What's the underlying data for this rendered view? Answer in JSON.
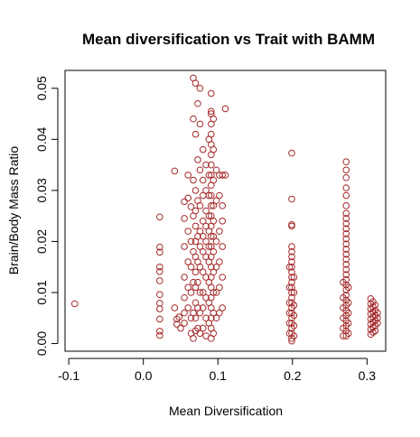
{
  "chart_data": {
    "type": "scatter",
    "title": "Mean diversification vs Trait with BAMM",
    "xlabel": "Mean Diversification",
    "ylabel": "Brain/Body Mass Ratio",
    "xlim": [
      -0.105,
      0.325
    ],
    "ylim": [
      -0.0015,
      0.0535
    ],
    "x_ticks": [
      -0.1,
      0.0,
      0.1,
      0.2,
      0.3
    ],
    "x_tick_labels": [
      "-0.1",
      "0.0",
      "0.1",
      "0.2",
      "0.3"
    ],
    "y_ticks": [
      0.0,
      0.01,
      0.02,
      0.03,
      0.04,
      0.05
    ],
    "y_tick_labels": [
      "0.00",
      "0.01",
      "0.02",
      "0.03",
      "0.04",
      "0.05"
    ],
    "marker": "open-circle",
    "color": "#a52a2a",
    "grid": false,
    "legend": "none",
    "points": [
      [
        -0.092,
        0.0078
      ],
      [
        0.022,
        0.0248
      ],
      [
        0.022,
        0.0189
      ],
      [
        0.022,
        0.0179
      ],
      [
        0.022,
        0.015
      ],
      [
        0.022,
        0.0141
      ],
      [
        0.022,
        0.0123
      ],
      [
        0.022,
        0.0096
      ],
      [
        0.022,
        0.0079
      ],
      [
        0.022,
        0.0068
      ],
      [
        0.022,
        0.0048
      ],
      [
        0.022,
        0.0024
      ],
      [
        0.022,
        0.0016
      ],
      [
        0.042,
        0.0338
      ],
      [
        0.042,
        0.007
      ],
      [
        0.045,
        0.0048
      ],
      [
        0.045,
        0.0038
      ],
      [
        0.048,
        0.0052
      ],
      [
        0.05,
        0.003
      ],
      [
        0.055,
        0.0278
      ],
      [
        0.055,
        0.0245
      ],
      [
        0.055,
        0.019
      ],
      [
        0.055,
        0.013
      ],
      [
        0.055,
        0.009
      ],
      [
        0.055,
        0.006
      ],
      [
        0.055,
        0.004
      ],
      [
        0.06,
        0.033
      ],
      [
        0.06,
        0.0285
      ],
      [
        0.06,
        0.022
      ],
      [
        0.06,
        0.016
      ],
      [
        0.06,
        0.011
      ],
      [
        0.06,
        0.007
      ],
      [
        0.064,
        0.0268
      ],
      [
        0.064,
        0.02
      ],
      [
        0.064,
        0.015
      ],
      [
        0.064,
        0.01
      ],
      [
        0.064,
        0.005
      ],
      [
        0.064,
        0.002
      ],
      [
        0.067,
        0.052
      ],
      [
        0.067,
        0.044
      ],
      [
        0.067,
        0.032
      ],
      [
        0.067,
        0.025
      ],
      [
        0.067,
        0.018
      ],
      [
        0.067,
        0.012
      ],
      [
        0.067,
        0.006
      ],
      [
        0.067,
        0.001
      ],
      [
        0.07,
        0.051
      ],
      [
        0.07,
        0.041
      ],
      [
        0.07,
        0.03
      ],
      [
        0.07,
        0.026
      ],
      [
        0.07,
        0.023
      ],
      [
        0.07,
        0.02
      ],
      [
        0.07,
        0.017
      ],
      [
        0.07,
        0.014
      ],
      [
        0.07,
        0.011
      ],
      [
        0.07,
        0.008
      ],
      [
        0.07,
        0.005
      ],
      [
        0.07,
        0.0025
      ],
      [
        0.073,
        0.047
      ],
      [
        0.073,
        0.036
      ],
      [
        0.073,
        0.028
      ],
      [
        0.073,
        0.021
      ],
      [
        0.073,
        0.016
      ],
      [
        0.073,
        0.012
      ],
      [
        0.073,
        0.007
      ],
      [
        0.073,
        0.003
      ],
      [
        0.076,
        0.05
      ],
      [
        0.076,
        0.043
      ],
      [
        0.076,
        0.034
      ],
      [
        0.076,
        0.027
      ],
      [
        0.076,
        0.022
      ],
      [
        0.076,
        0.019
      ],
      [
        0.076,
        0.015
      ],
      [
        0.076,
        0.01
      ],
      [
        0.076,
        0.006
      ],
      [
        0.076,
        0.002
      ],
      [
        0.08,
        0.038
      ],
      [
        0.08,
        0.032
      ],
      [
        0.08,
        0.029
      ],
      [
        0.08,
        0.024
      ],
      [
        0.08,
        0.021
      ],
      [
        0.08,
        0.018
      ],
      [
        0.08,
        0.014
      ],
      [
        0.08,
        0.01
      ],
      [
        0.08,
        0.007
      ],
      [
        0.08,
        0.003
      ],
      [
        0.084,
        0.035
      ],
      [
        0.084,
        0.03
      ],
      [
        0.084,
        0.026
      ],
      [
        0.084,
        0.023
      ],
      [
        0.084,
        0.02
      ],
      [
        0.084,
        0.017
      ],
      [
        0.084,
        0.013
      ],
      [
        0.084,
        0.009
      ],
      [
        0.084,
        0.005
      ],
      [
        0.084,
        0.0015
      ],
      [
        0.088,
        0.04
      ],
      [
        0.088,
        0.033
      ],
      [
        0.088,
        0.029
      ],
      [
        0.088,
        0.025
      ],
      [
        0.088,
        0.022
      ],
      [
        0.088,
        0.019
      ],
      [
        0.088,
        0.016
      ],
      [
        0.088,
        0.012
      ],
      [
        0.088,
        0.008
      ],
      [
        0.088,
        0.004
      ],
      [
        0.091,
        0.049
      ],
      [
        0.091,
        0.0455
      ],
      [
        0.091,
        0.045
      ],
      [
        0.091,
        0.043
      ],
      [
        0.091,
        0.041
      ],
      [
        0.091,
        0.039
      ],
      [
        0.091,
        0.037
      ],
      [
        0.091,
        0.035
      ],
      [
        0.091,
        0.033
      ],
      [
        0.091,
        0.031
      ],
      [
        0.091,
        0.029
      ],
      [
        0.091,
        0.027
      ],
      [
        0.091,
        0.025
      ],
      [
        0.091,
        0.023
      ],
      [
        0.091,
        0.021
      ],
      [
        0.091,
        0.019
      ],
      [
        0.091,
        0.017
      ],
      [
        0.091,
        0.015
      ],
      [
        0.091,
        0.013
      ],
      [
        0.091,
        0.011
      ],
      [
        0.091,
        0.009
      ],
      [
        0.091,
        0.007
      ],
      [
        0.091,
        0.005
      ],
      [
        0.091,
        0.003
      ],
      [
        0.091,
        0.001
      ],
      [
        0.094,
        0.044
      ],
      [
        0.094,
        0.038
      ],
      [
        0.094,
        0.032
      ],
      [
        0.094,
        0.027
      ],
      [
        0.094,
        0.024
      ],
      [
        0.094,
        0.021
      ],
      [
        0.094,
        0.018
      ],
      [
        0.094,
        0.014
      ],
      [
        0.094,
        0.01
      ],
      [
        0.094,
        0.006
      ],
      [
        0.094,
        0.002
      ],
      [
        0.098,
        0.034
      ],
      [
        0.098,
        0.028
      ],
      [
        0.098,
        0.02
      ],
      [
        0.098,
        0.015
      ],
      [
        0.098,
        0.01
      ],
      [
        0.098,
        0.005
      ],
      [
        0.102,
        0.033
      ],
      [
        0.102,
        0.029
      ],
      [
        0.102,
        0.022
      ],
      [
        0.102,
        0.016
      ],
      [
        0.102,
        0.011
      ],
      [
        0.102,
        0.006
      ],
      [
        0.106,
        0.033
      ],
      [
        0.106,
        0.027
      ],
      [
        0.106,
        0.024
      ],
      [
        0.106,
        0.019
      ],
      [
        0.106,
        0.013
      ],
      [
        0.106,
        0.007
      ],
      [
        0.11,
        0.046
      ],
      [
        0.11,
        0.033
      ],
      [
        0.199,
        0.0373
      ],
      [
        0.199,
        0.0283
      ],
      [
        0.199,
        0.0233
      ],
      [
        0.199,
        0.023
      ],
      [
        0.199,
        0.019
      ],
      [
        0.199,
        0.018
      ],
      [
        0.199,
        0.017
      ],
      [
        0.199,
        0.016
      ],
      [
        0.199,
        0.015
      ],
      [
        0.199,
        0.014
      ],
      [
        0.199,
        0.013
      ],
      [
        0.199,
        0.012
      ],
      [
        0.199,
        0.011
      ],
      [
        0.199,
        0.01
      ],
      [
        0.199,
        0.009
      ],
      [
        0.199,
        0.008
      ],
      [
        0.199,
        0.007
      ],
      [
        0.199,
        0.006
      ],
      [
        0.199,
        0.005
      ],
      [
        0.199,
        0.004
      ],
      [
        0.199,
        0.003
      ],
      [
        0.199,
        0.002
      ],
      [
        0.199,
        0.001
      ],
      [
        0.199,
        0.0005
      ],
      [
        0.196,
        0.015
      ],
      [
        0.196,
        0.011
      ],
      [
        0.196,
        0.008
      ],
      [
        0.196,
        0.006
      ],
      [
        0.196,
        0.004
      ],
      [
        0.196,
        0.002
      ],
      [
        0.202,
        0.013
      ],
      [
        0.202,
        0.01
      ],
      [
        0.202,
        0.0075
      ],
      [
        0.202,
        0.0055
      ],
      [
        0.202,
        0.0035
      ],
      [
        0.202,
        0.0015
      ],
      [
        0.272,
        0.0356
      ],
      [
        0.272,
        0.034
      ],
      [
        0.272,
        0.0325
      ],
      [
        0.272,
        0.0305
      ],
      [
        0.272,
        0.029
      ],
      [
        0.272,
        0.027
      ],
      [
        0.272,
        0.0255
      ],
      [
        0.272,
        0.0245
      ],
      [
        0.272,
        0.0235
      ],
      [
        0.272,
        0.0225
      ],
      [
        0.272,
        0.0215
      ],
      [
        0.272,
        0.0205
      ],
      [
        0.272,
        0.0195
      ],
      [
        0.272,
        0.0185
      ],
      [
        0.272,
        0.0175
      ],
      [
        0.272,
        0.0165
      ],
      [
        0.272,
        0.0155
      ],
      [
        0.272,
        0.0145
      ],
      [
        0.272,
        0.0135
      ],
      [
        0.272,
        0.0125
      ],
      [
        0.272,
        0.0115
      ],
      [
        0.272,
        0.0105
      ],
      [
        0.272,
        0.0095
      ],
      [
        0.272,
        0.0085
      ],
      [
        0.272,
        0.0075
      ],
      [
        0.272,
        0.0065
      ],
      [
        0.272,
        0.0055
      ],
      [
        0.272,
        0.0045
      ],
      [
        0.272,
        0.0035
      ],
      [
        0.272,
        0.0025
      ],
      [
        0.272,
        0.0015
      ],
      [
        0.268,
        0.012
      ],
      [
        0.268,
        0.009
      ],
      [
        0.268,
        0.007
      ],
      [
        0.268,
        0.005
      ],
      [
        0.268,
        0.003
      ],
      [
        0.268,
        0.0015
      ],
      [
        0.275,
        0.011
      ],
      [
        0.275,
        0.008
      ],
      [
        0.275,
        0.006
      ],
      [
        0.275,
        0.004
      ],
      [
        0.275,
        0.002
      ],
      [
        0.305,
        0.0088
      ],
      [
        0.305,
        0.0078
      ],
      [
        0.305,
        0.0068
      ],
      [
        0.305,
        0.0058
      ],
      [
        0.305,
        0.0048
      ],
      [
        0.305,
        0.0038
      ],
      [
        0.305,
        0.0028
      ],
      [
        0.305,
        0.0018
      ],
      [
        0.308,
        0.0082
      ],
      [
        0.308,
        0.0072
      ],
      [
        0.308,
        0.0062
      ],
      [
        0.308,
        0.0052
      ],
      [
        0.308,
        0.0042
      ],
      [
        0.308,
        0.0032
      ],
      [
        0.308,
        0.0022
      ],
      [
        0.311,
        0.0075
      ],
      [
        0.311,
        0.0065
      ],
      [
        0.311,
        0.0055
      ],
      [
        0.311,
        0.0045
      ],
      [
        0.311,
        0.0035
      ],
      [
        0.311,
        0.0025
      ],
      [
        0.314,
        0.006
      ],
      [
        0.314,
        0.005
      ],
      [
        0.314,
        0.004
      ]
    ]
  }
}
